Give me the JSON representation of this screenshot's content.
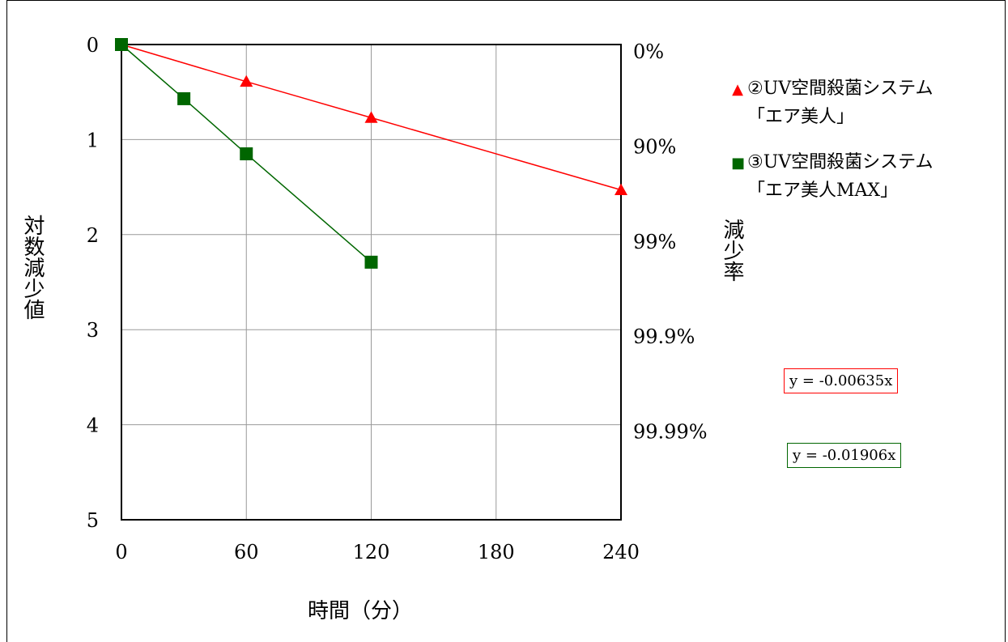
{
  "chart_data": {
    "type": "line",
    "xlabel": "時間（分）",
    "ylabel_left": "対数減少値",
    "ylabel_right": "減少率",
    "x_ticks": [
      0,
      60,
      120,
      180,
      240
    ],
    "y_ticks": [
      0,
      1,
      2,
      3,
      4,
      5
    ],
    "y_right_ticks": [
      "0%",
      "90%",
      "99%",
      "99.9%",
      "99.99%"
    ],
    "xlim": [
      0,
      240
    ],
    "ylim": [
      0,
      5
    ],
    "y_inverted": true,
    "grid": true,
    "legend_position": "right",
    "series": [
      {
        "name": "②UV空間殺菌システム「エア美人」",
        "legend_lines": [
          "②UV空間殺菌システム",
          "「エア美人」"
        ],
        "marker": "triangle",
        "marker_glyph": "▲",
        "color": "#ff0000",
        "x": [
          0,
          60,
          120,
          240
        ],
        "y": [
          0,
          0.39,
          0.77,
          1.53
        ],
        "equation": "y = -0.00635x"
      },
      {
        "name": "③UV空間殺菌システム「エア美人MAX」",
        "legend_lines": [
          "③UV空間殺菌システム",
          "「エア美人MAX」"
        ],
        "marker": "square",
        "marker_glyph": "■",
        "color": "#006600",
        "x": [
          0,
          30,
          60,
          120
        ],
        "y": [
          0,
          0.57,
          1.15,
          2.29
        ],
        "equation": "y = -0.01906x"
      }
    ]
  }
}
